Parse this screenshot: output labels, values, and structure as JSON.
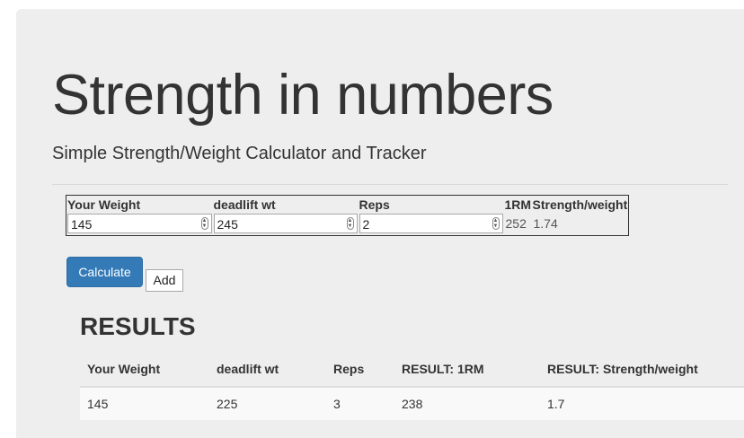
{
  "header": {
    "title": "Strength in numbers",
    "subtitle": "Simple Strength/Weight Calculator and Tracker"
  },
  "calculator": {
    "columns": [
      "Your Weight",
      "deadlift wt",
      "Reps",
      "1RM",
      "Strength/weight"
    ],
    "inputs": {
      "your_weight": "145",
      "deadlift_wt": "245",
      "reps": "2"
    },
    "outputs": {
      "one_rm": "252",
      "strength_weight": "1.74"
    },
    "calculate_label": "Calculate",
    "add_label": "Add"
  },
  "results": {
    "heading": "RESULTS",
    "columns": [
      "Your Weight",
      "deadlift wt",
      "Reps",
      "RESULT: 1RM",
      "RESULT: Strength/weight"
    ],
    "rows": [
      [
        "145",
        "225",
        "3",
        "238",
        "1.7"
      ]
    ]
  },
  "colors": {
    "primary_button": "#337ab7",
    "jumbotron_bg": "#eeeeee"
  }
}
